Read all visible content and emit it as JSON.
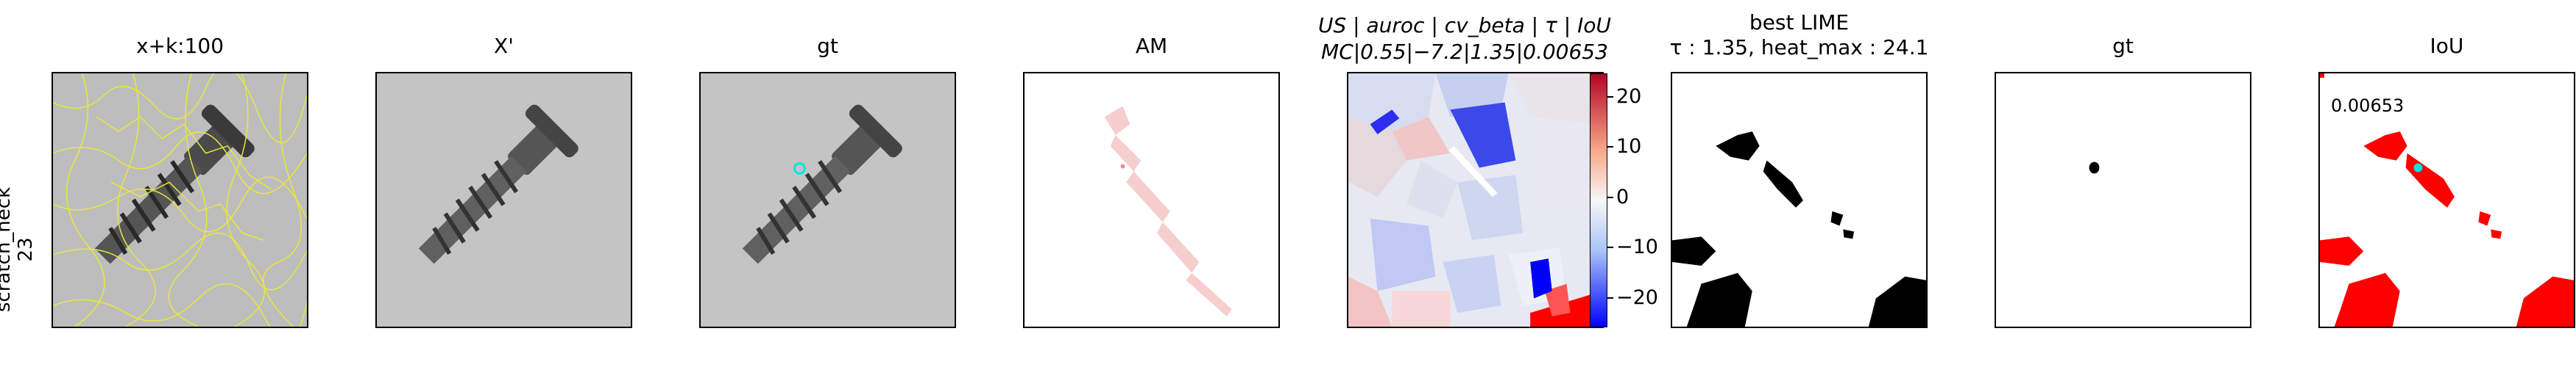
{
  "row_label": {
    "line1": "scratch_neck",
    "line2": "23"
  },
  "panels": [
    {
      "id": "p1",
      "title": "x+k:100"
    },
    {
      "id": "p2",
      "title": "X'"
    },
    {
      "id": "p3",
      "title": "gt"
    },
    {
      "id": "p4",
      "title": "AM"
    },
    {
      "id": "p5",
      "title_line1": "US | auroc | cv_beta | τ | IoU",
      "title_line2": "MC|0.55|−7.2|1.35|0.00653"
    },
    {
      "id": "p6",
      "title_line1": "best LIME",
      "title_line2": "τ : 1.35, heat_max : 24.1"
    },
    {
      "id": "p7",
      "title": "gt"
    },
    {
      "id": "p8",
      "title": "IoU",
      "annotation": "0.00653"
    }
  ],
  "colorbar": {
    "ticks": [
      "20",
      "10",
      "0",
      "−10",
      "−20"
    ],
    "colors": {
      "high": "#ff0000",
      "mid": "#f7f7f7",
      "low": "#0000ff"
    }
  },
  "colors": {
    "segment_outline": "#e8e83a",
    "gt_marker": "#00e5e5",
    "mask": "#ff0000",
    "lime": "#000000"
  }
}
